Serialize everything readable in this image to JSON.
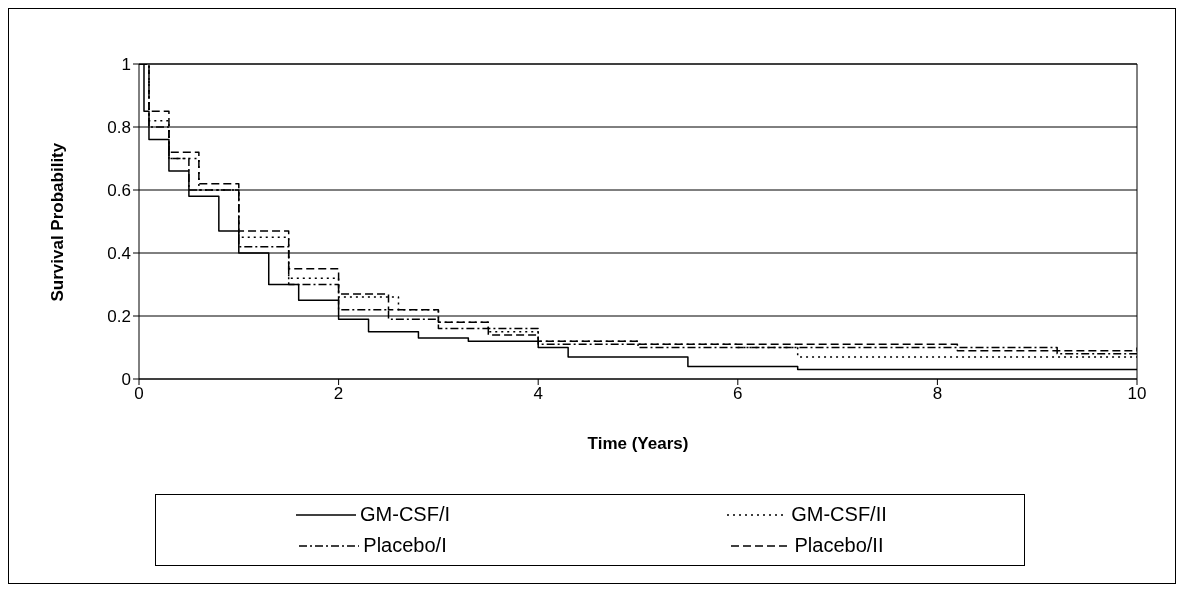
{
  "chart_data": {
    "type": "step",
    "xlabel": "Time (Years)",
    "ylabel": "Survival Probability",
    "xlim": [
      0,
      10
    ],
    "xticks": [
      0,
      2,
      4,
      6,
      8,
      10
    ],
    "ylim": [
      0,
      1
    ],
    "yticks": [
      0,
      0.2,
      0.4,
      0.6,
      0.8,
      1
    ],
    "grid": "y",
    "legend": "bottom",
    "marker": "none",
    "series": [
      {
        "name": "GM-CSF/I",
        "color": "#000000",
        "line_style": "solid",
        "x": [
          0,
          0.05,
          0.1,
          0.3,
          0.5,
          0.8,
          1.0,
          1.3,
          1.6,
          2.0,
          2.3,
          2.8,
          3.3,
          4.0,
          4.3,
          5.5,
          6.6,
          10
        ],
        "values": [
          1,
          0.85,
          0.76,
          0.66,
          0.58,
          0.47,
          0.4,
          0.3,
          0.25,
          0.19,
          0.15,
          0.13,
          0.12,
          0.1,
          0.07,
          0.04,
          0.03,
          0.03
        ]
      },
      {
        "name": "GM-CSF/II",
        "color": "#000000",
        "line_style": "dotted",
        "x": [
          0,
          0.1,
          0.3,
          0.6,
          1.0,
          1.5,
          2.0,
          2.6,
          3.0,
          3.5,
          4.0,
          5.0,
          6.0,
          6.6,
          10
        ],
        "values": [
          1,
          0.82,
          0.7,
          0.6,
          0.45,
          0.32,
          0.26,
          0.22,
          0.18,
          0.15,
          0.12,
          0.11,
          0.1,
          0.07,
          0.07
        ]
      },
      {
        "name": "Placebo/I",
        "color": "#000000",
        "line_style": "dashdot",
        "x": [
          0,
          0.1,
          0.3,
          0.5,
          1.0,
          1.5,
          2.0,
          2.5,
          3.0,
          4.0,
          5.0,
          6.0,
          8.0,
          9.2,
          10
        ],
        "values": [
          1,
          0.8,
          0.7,
          0.6,
          0.42,
          0.3,
          0.22,
          0.19,
          0.16,
          0.11,
          0.1,
          0.1,
          0.1,
          0.08,
          0.08
        ]
      },
      {
        "name": "Placebo/II",
        "color": "#000000",
        "line_style": "dashed",
        "x": [
          0,
          0.1,
          0.3,
          0.6,
          1.0,
          1.5,
          2.0,
          2.5,
          3.0,
          3.5,
          4.0,
          5.0,
          6.0,
          8.1,
          8.2,
          10
        ],
        "values": [
          1,
          0.85,
          0.72,
          0.62,
          0.47,
          0.35,
          0.27,
          0.22,
          0.18,
          0.14,
          0.12,
          0.11,
          0.11,
          0.11,
          0.09,
          0.1
        ]
      }
    ]
  }
}
